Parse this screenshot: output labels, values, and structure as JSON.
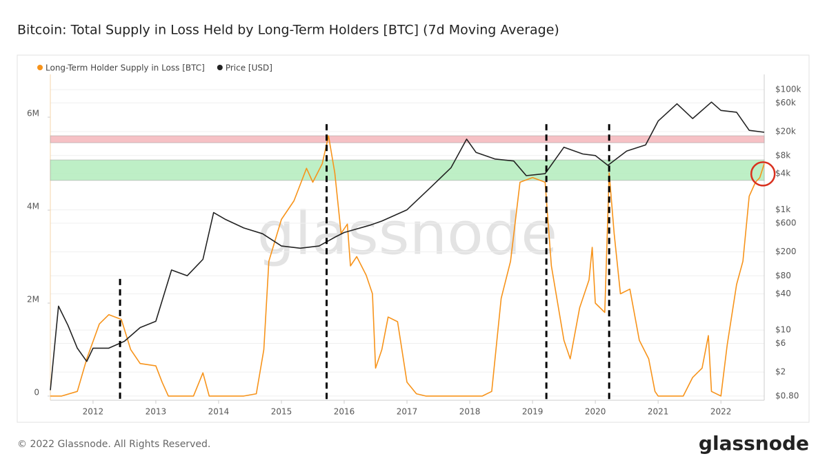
{
  "chart_data": {
    "type": "line",
    "title": "Bitcoin: Total Supply in Loss Held by Long-Term Holders [BTC] (7d Moving Average)",
    "watermark": "glassnode",
    "footer": "© 2022 Glassnode. All Rights Reserved.",
    "logo": "glassnode",
    "legend": "top-left",
    "grid": true,
    "y2_log": true,
    "xlim": [
      2011.32,
      2022.69
    ],
    "xticks": [
      2012,
      2013,
      2014,
      2015,
      2016,
      2017,
      2018,
      2019,
      2020,
      2021,
      2022
    ],
    "ylim": [
      -90000,
      6920000
    ],
    "yticks": [
      0,
      {
        "value": 2000000,
        "label": "2M"
      },
      {
        "value": 4000000,
        "label": "4M"
      },
      {
        "value": 6000000,
        "label": "6M"
      }
    ],
    "y2lim": [
      0.68,
      179000
    ],
    "y2ticks": [
      {
        "value": 0.8,
        "label": "$0.80"
      },
      {
        "value": 2,
        "label": "$2"
      },
      {
        "value": 6,
        "label": "$6"
      },
      {
        "value": 10,
        "label": "$10"
      },
      {
        "value": 40,
        "label": "$40"
      },
      {
        "value": 80,
        "label": "$80"
      },
      {
        "value": 200,
        "label": "$200"
      },
      {
        "value": 600,
        "label": "$600"
      },
      {
        "value": 1000,
        "label": "$1k"
      },
      {
        "value": 4000,
        "label": "$4k"
      },
      {
        "value": 8000,
        "label": "$8k"
      },
      {
        "value": 20000,
        "label": "$20k"
      },
      {
        "value": 60000,
        "label": "$60k"
      },
      {
        "value": 100000,
        "label": "$100k"
      }
    ],
    "series": [
      {
        "name": "Long-Term Holder Supply in Loss [BTC]",
        "color": "#f7931a",
        "axis": "y",
        "x": [
          2011.32,
          2011.5,
          2011.75,
          2011.9,
          2012.1,
          2012.25,
          2012.45,
          2012.6,
          2012.75,
          2013.0,
          2013.1,
          2013.2,
          2013.6,
          2013.75,
          2013.85,
          2014.4,
          2014.6,
          2014.72,
          2014.8,
          2015.0,
          2015.2,
          2015.4,
          2015.5,
          2015.65,
          2015.75,
          2015.85,
          2015.95,
          2016.05,
          2016.1,
          2016.2,
          2016.35,
          2016.45,
          2016.5,
          2016.6,
          2016.7,
          2016.85,
          2017.0,
          2017.15,
          2017.3,
          2018.2,
          2018.35,
          2018.5,
          2018.65,
          2018.8,
          2019.0,
          2019.2,
          2019.3,
          2019.4,
          2019.5,
          2019.6,
          2019.75,
          2019.9,
          2019.95,
          2020.0,
          2020.15,
          2020.22,
          2020.3,
          2020.4,
          2020.55,
          2020.7,
          2020.85,
          2020.95,
          2021.0,
          2021.4,
          2021.55,
          2021.7,
          2021.8,
          2021.85,
          2022.0,
          2022.1,
          2022.25,
          2022.35,
          2022.45,
          2022.55,
          2022.62,
          2022.69
        ],
        "values": [
          0,
          0,
          100000,
          800000,
          1550000,
          1750000,
          1650000,
          1000000,
          700000,
          650000,
          300000,
          0,
          0,
          500000,
          0,
          0,
          50000,
          1000000,
          2900000,
          3800000,
          4200000,
          4900000,
          4600000,
          5000000,
          5600000,
          4800000,
          3500000,
          3700000,
          2800000,
          3000000,
          2600000,
          2200000,
          600000,
          1000000,
          1700000,
          1600000,
          300000,
          50000,
          0,
          0,
          100000,
          2100000,
          2900000,
          4600000,
          4700000,
          4600000,
          2800000,
          2000000,
          1200000,
          800000,
          1900000,
          2500000,
          3200000,
          2000000,
          1800000,
          4800000,
          3500000,
          2200000,
          2300000,
          1200000,
          800000,
          100000,
          0,
          0,
          400000,
          600000,
          1300000,
          100000,
          0,
          1100000,
          2400000,
          2900000,
          4300000,
          4600000,
          4700000,
          5000000
        ]
      },
      {
        "name": "Price [USD]",
        "color": "#222222",
        "axis": "y2",
        "x": [
          2011.32,
          2011.45,
          2011.6,
          2011.75,
          2011.9,
          2012.0,
          2012.25,
          2012.5,
          2012.75,
          2013.0,
          2013.25,
          2013.5,
          2013.75,
          2013.92,
          2014.1,
          2014.4,
          2014.7,
          2015.0,
          2015.3,
          2015.6,
          2015.85,
          2016.0,
          2016.4,
          2016.6,
          2017.0,
          2017.4,
          2017.7,
          2017.95,
          2018.1,
          2018.4,
          2018.7,
          2018.9,
          2019.2,
          2019.5,
          2019.8,
          2020.0,
          2020.2,
          2020.5,
          2020.8,
          2021.0,
          2021.3,
          2021.55,
          2021.85,
          2022.0,
          2022.25,
          2022.45,
          2022.69
        ],
        "values": [
          1,
          25,
          12,
          5,
          3,
          5,
          5,
          6.5,
          11,
          14,
          100,
          80,
          150,
          900,
          700,
          500,
          400,
          250,
          230,
          250,
          350,
          420,
          550,
          650,
          1000,
          2500,
          5000,
          15000,
          9000,
          7000,
          6500,
          3700,
          4000,
          11000,
          8500,
          8000,
          5500,
          9500,
          12000,
          30000,
          58000,
          33000,
          62000,
          45000,
          42000,
          21000,
          19500
        ]
      }
    ],
    "bands": [
      {
        "low": 5450000,
        "high": 5600000,
        "color": "#f4b6bb"
      },
      {
        "low": 4640000,
        "high": 5080000,
        "color": "#b3ecbc"
      }
    ],
    "vlines": [
      {
        "x": 2012.43,
        "top": 2520000
      },
      {
        "x": 2015.72,
        "top": 5850000
      },
      {
        "x": 2019.22,
        "top": 5850000
      },
      {
        "x": 2020.22,
        "top": 5850000
      }
    ],
    "circle": {
      "x": 2022.67,
      "value": 4780000,
      "color": "#d9301e"
    }
  }
}
